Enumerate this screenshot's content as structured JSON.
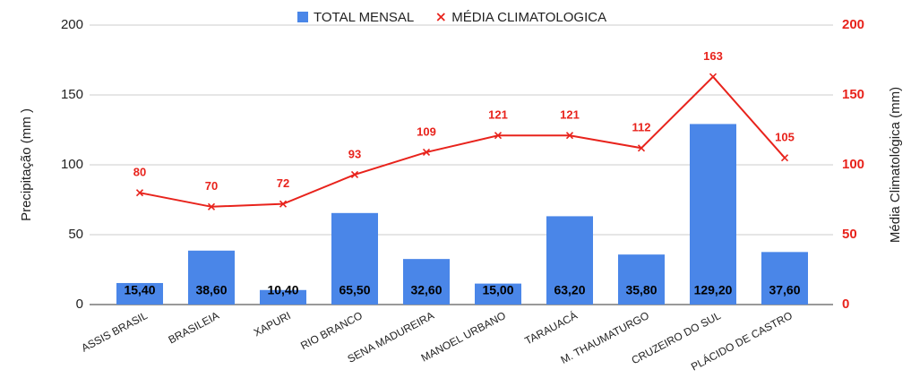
{
  "chart_data": {
    "type": "combo",
    "categories": [
      "ASSIS BRASIL",
      "BRASILEIA",
      "XAPURI",
      "RIO BRANCO",
      "SENA MADUREIRA",
      "MANOEL URBANO",
      "TARAUACÁ",
      "M. THAUMATURGO",
      "CRUZEIRO DO SUL",
      "PLÁCIDO DE CASTRO"
    ],
    "series": [
      {
        "name": "TOTAL MENSAL",
        "type": "bar",
        "color": "#4a86e8",
        "values": [
          15.4,
          38.6,
          10.4,
          65.5,
          32.6,
          15.0,
          63.2,
          35.8,
          129.2,
          37.6
        ],
        "value_labels": [
          "15,40",
          "38,60",
          "10,40",
          "65,50",
          "32,60",
          "15,00",
          "63,20",
          "35,80",
          "129,20",
          "37,60"
        ]
      },
      {
        "name": "MÉDIA CLIMATOLOGICA",
        "type": "line",
        "axis": "y2",
        "color": "#e8231c",
        "values": [
          80,
          70,
          72,
          93,
          109,
          121,
          121,
          112,
          163,
          105
        ]
      }
    ],
    "ylabel": "Precipitação (mm )",
    "y2label": "Média Climatológica (mm)",
    "ylim": [
      0,
      200
    ],
    "yticks": [
      0,
      50,
      100,
      150,
      200
    ],
    "y2lim": [
      0,
      200
    ],
    "y2ticks": [
      0,
      50,
      100,
      150,
      200
    ],
    "grid": true
  }
}
